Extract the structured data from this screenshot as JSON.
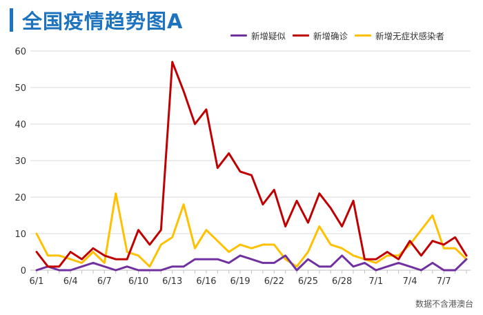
{
  "page": {
    "title": "全国疫情趋势图A",
    "note": "数据不含港澳台"
  },
  "colors": {
    "title": "#1e73be",
    "grid": "#d9d9d9",
    "axis": "#bfbfbf"
  },
  "chart_data": {
    "type": "line",
    "title": "全国疫情趋势图A",
    "xlabel": "",
    "ylabel": "",
    "ylim": [
      0,
      60
    ],
    "yticks": [
      0,
      10,
      20,
      30,
      40,
      50,
      60
    ],
    "grid": true,
    "legend_position": "top-right",
    "x": [
      "6/1",
      "6/2",
      "6/3",
      "6/4",
      "6/5",
      "6/6",
      "6/7",
      "6/8",
      "6/9",
      "6/10",
      "6/11",
      "6/12",
      "6/13",
      "6/14",
      "6/15",
      "6/16",
      "6/17",
      "6/18",
      "6/19",
      "6/20",
      "6/21",
      "6/22",
      "6/23",
      "6/24",
      "6/25",
      "6/26",
      "6/27",
      "6/28",
      "6/29",
      "6/30",
      "7/1",
      "7/2",
      "7/3",
      "7/4",
      "7/5",
      "7/6",
      "7/7",
      "7/8",
      "7/9"
    ],
    "xtick_labels": [
      "6/1",
      "6/4",
      "6/7",
      "6/10",
      "6/13",
      "6/16",
      "6/19",
      "6/22",
      "6/25",
      "6/28",
      "7/1",
      "7/4",
      "7/7"
    ],
    "series": [
      {
        "name": "新增疑似",
        "color": "#7030a0",
        "values": [
          0,
          1,
          0,
          0,
          1,
          2,
          1,
          0,
          1,
          0,
          0,
          0,
          1,
          1,
          3,
          3,
          3,
          2,
          4,
          3,
          2,
          2,
          4,
          0,
          3,
          1,
          1,
          4,
          1,
          2,
          0,
          1,
          2,
          1,
          0,
          2,
          0,
          0,
          3
        ]
      },
      {
        "name": "新增确诊",
        "color": "#c00000",
        "values": [
          5,
          1,
          1,
          5,
          3,
          6,
          4,
          3,
          3,
          11,
          7,
          11,
          57,
          49,
          40,
          44,
          28,
          32,
          27,
          26,
          18,
          22,
          12,
          19,
          13,
          21,
          17,
          12,
          19,
          3,
          3,
          5,
          3,
          8,
          4,
          8,
          7,
          9,
          4
        ]
      },
      {
        "name": "新增无症状感染者",
        "color": "#ffc000",
        "values": [
          10,
          4,
          4,
          3,
          2,
          5,
          2,
          21,
          5,
          4,
          1,
          7,
          9,
          18,
          6,
          11,
          8,
          5,
          7,
          6,
          7,
          7,
          3,
          1,
          5,
          12,
          7,
          6,
          4,
          3,
          2,
          4,
          4,
          7,
          11,
          15,
          6,
          6,
          3
        ]
      }
    ]
  }
}
